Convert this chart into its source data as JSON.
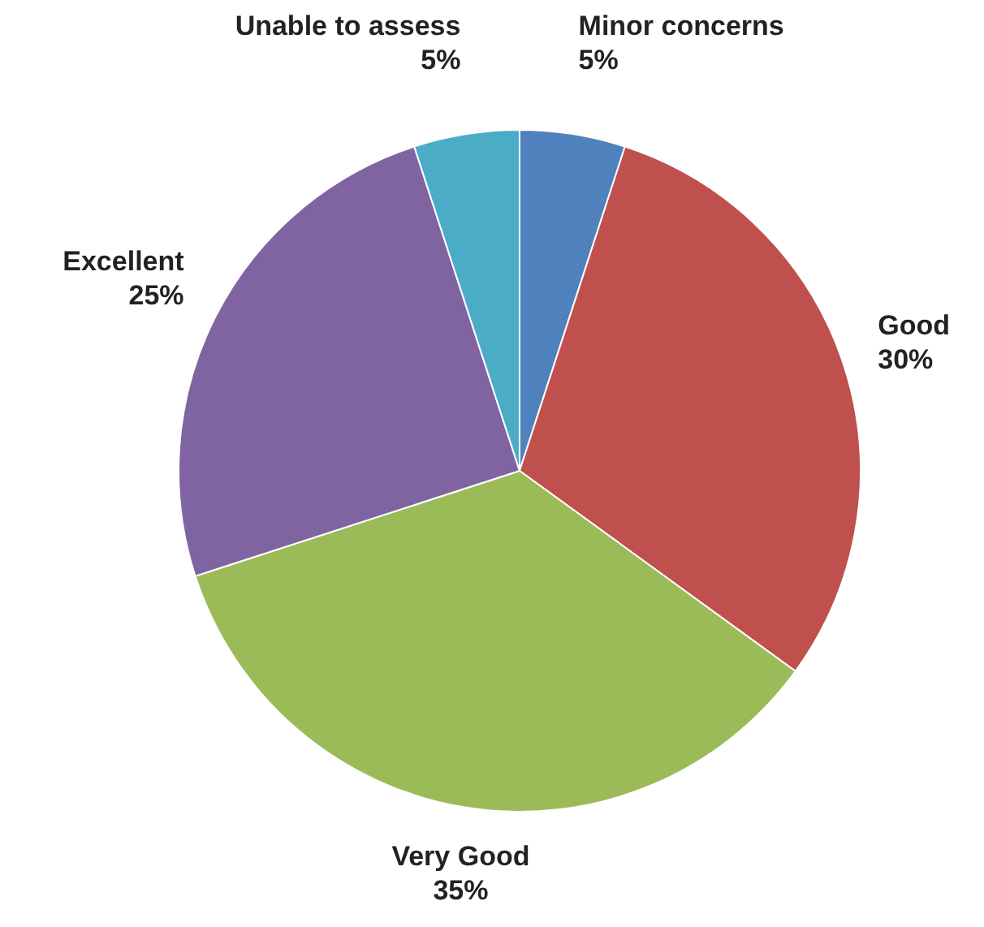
{
  "chart_data": {
    "type": "pie",
    "categories": [
      "Minor concerns",
      "Good",
      "Very Good",
      "Excellent",
      "Unable to assess"
    ],
    "values": [
      5,
      30,
      35,
      25,
      5
    ],
    "colors": [
      "#4f81bd",
      "#c0504d",
      "#9bbb59",
      "#8064a2",
      "#4bacc6"
    ],
    "value_labels": [
      "5%",
      "30%",
      "35%",
      "25%",
      "5%"
    ],
    "legend": false
  }
}
